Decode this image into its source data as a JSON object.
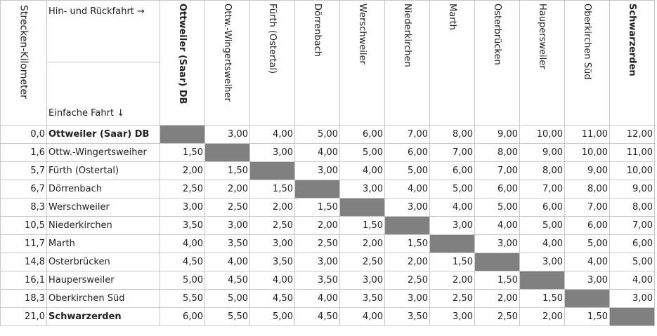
{
  "header": {
    "km_label": "Strecken-Kilometer",
    "roundtrip_label": "Hin- und Rückfahrt →",
    "single_label": "Einfache Fahrt ↓"
  },
  "stations": [
    {
      "km": "0,0",
      "name": "Ottweiler (Saar) DB",
      "bold": true
    },
    {
      "km": "1,6",
      "name": "Ottw.-Wingertsweiher",
      "bold": false
    },
    {
      "km": "5,7",
      "name": "Fürth (Ostertal)",
      "bold": false
    },
    {
      "km": "6,7",
      "name": "Dörrenbach",
      "bold": false
    },
    {
      "km": "8,3",
      "name": "Werschweiler",
      "bold": false
    },
    {
      "km": "10,5",
      "name": "Niederkirchen",
      "bold": false
    },
    {
      "km": "11,7",
      "name": "Marth",
      "bold": false
    },
    {
      "km": "14,8",
      "name": "Osterbrücken",
      "bold": false
    },
    {
      "km": "16,1",
      "name": "Haupersweiler",
      "bold": false
    },
    {
      "km": "18,3",
      "name": "Oberkirchen Süd",
      "bold": false
    },
    {
      "km": "21,0",
      "name": "Schwarzerden",
      "bold": true
    }
  ],
  "column_headers": [
    "Ottweiler (Saar) DB",
    "Ottw.-Wingertsweiher",
    "Fürth (Ostertal)",
    "Dörrenbach",
    "Werschweiler",
    "Niederkirchen",
    "Marth",
    "Osterbrücken",
    "Haupersweiler",
    "Oberkirchen Süd",
    "Schwarzerden"
  ],
  "fares": [
    [
      "",
      "3,00",
      "4,00",
      "5,00",
      "6,00",
      "7,00",
      "8,00",
      "9,00",
      "10,00",
      "11,00",
      "12,00"
    ],
    [
      "1,50",
      "",
      "3,00",
      "4,00",
      "5,00",
      "6,00",
      "7,00",
      "8,00",
      "9,00",
      "10,00",
      "11,00"
    ],
    [
      "2,00",
      "1,50",
      "",
      "3,00",
      "4,00",
      "5,00",
      "6,00",
      "7,00",
      "8,00",
      "9,00",
      "10,00"
    ],
    [
      "2,50",
      "2,00",
      "1,50",
      "",
      "3,00",
      "4,00",
      "5,00",
      "6,00",
      "7,00",
      "8,00",
      "9,00"
    ],
    [
      "3,00",
      "2,50",
      "2,00",
      "1,50",
      "",
      "3,00",
      "4,00",
      "5,00",
      "6,00",
      "7,00",
      "8,00"
    ],
    [
      "3,50",
      "3,00",
      "2,50",
      "2,00",
      "1,50",
      "",
      "3,00",
      "4,00",
      "5,00",
      "6,00",
      "7,00"
    ],
    [
      "4,00",
      "3,50",
      "3,00",
      "2,50",
      "2,00",
      "1,50",
      "",
      "3,00",
      "4,00",
      "5,00",
      "6,00"
    ],
    [
      "4,50",
      "4,00",
      "3,50",
      "3,00",
      "2,50",
      "2,00",
      "1,50",
      "",
      "3,00",
      "4,00",
      "5,00"
    ],
    [
      "5,00",
      "4,50",
      "4,00",
      "3,50",
      "3,00",
      "2,50",
      "2,00",
      "1,50",
      "",
      "3,00",
      "4,00"
    ],
    [
      "5,50",
      "5,00",
      "4,50",
      "4,00",
      "3,50",
      "3,00",
      "2,50",
      "2,00",
      "1,50",
      "",
      "3,00"
    ],
    [
      "6,00",
      "5,50",
      "5,00",
      "4,50",
      "4,00",
      "3,50",
      "3,00",
      "2,50",
      "2,00",
      "1,50",
      ""
    ]
  ],
  "colors": {
    "diagonal": "#808080",
    "border": "#c8c8c8"
  }
}
